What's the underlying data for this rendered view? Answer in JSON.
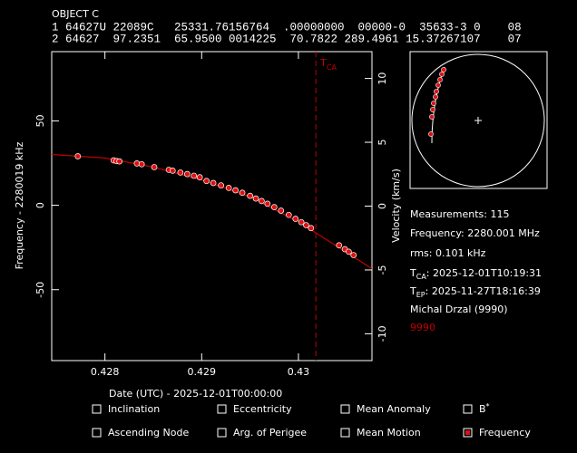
{
  "header": {
    "title": "OBJECT C",
    "tle_line1": "1 64627U 22089C   25331.76156764  .00000000  00000-0  35633-3 0    08",
    "tle_line2": "2 64627  97.2351  65.9500 0014225  70.7822 289.4961 15.37267107    07"
  },
  "chart_data": {
    "type": "line",
    "x_label": "Date (UTC) - 2025-12-01T00:00:00",
    "y_label": "Frequency - 2280019 kHz",
    "y2_label": "Velocity (km/s)",
    "xlim": [
      0.42745,
      0.43076
    ],
    "xticks": [
      0.428,
      0.429,
      0.43
    ],
    "ylim": [
      -92,
      91
    ],
    "yticks": [
      -50,
      0,
      50
    ],
    "y2lim": [
      -12.1,
      12.1
    ],
    "y2ticks": [
      -10,
      -5,
      0,
      5,
      10
    ],
    "annotation": {
      "text": "T",
      "sub": "CA",
      "x": 0.43018,
      "color": "#c00000"
    },
    "series": [
      {
        "mode": "line",
        "color": "#c00000",
        "x": [
          0.42745,
          0.428,
          0.4285,
          0.429,
          0.4295,
          0.43,
          0.4305,
          0.43076
        ],
        "values": [
          30.1,
          28,
          22.6,
          15,
          5,
          -9.8,
          -28,
          -37.6
        ]
      },
      {
        "mode": "points",
        "color": "#e01010",
        "x": [
          0.42772,
          0.42809,
          0.42812,
          0.42815,
          0.42833,
          0.42838,
          0.42851,
          0.42866,
          0.4287,
          0.42878,
          0.42885,
          0.42892,
          0.42898,
          0.42905,
          0.42912,
          0.4292,
          0.42928,
          0.42935,
          0.42942,
          0.4295,
          0.42956,
          0.42962,
          0.42968,
          0.42975,
          0.42982,
          0.4299,
          0.42997,
          0.43003,
          0.43008,
          0.43013,
          0.43042,
          0.43048,
          0.43052,
          0.43057
        ],
        "values": [
          29,
          26.6,
          26.2,
          26,
          24.8,
          24.3,
          22.6,
          21,
          20.5,
          19.4,
          18.5,
          17.5,
          16.6,
          14.4,
          13.2,
          11.8,
          10.3,
          8.9,
          7.4,
          5.6,
          4,
          2.5,
          0.9,
          -1.1,
          -3.2,
          -5.7,
          -8,
          -10,
          -11.8,
          -13.5,
          -23.7,
          -26,
          -27.5,
          -29.5
        ]
      }
    ]
  },
  "info": {
    "measurements": "Measurements: 115",
    "frequency": "Frequency: 2280.001 MHz",
    "rms": "rms: 0.101 kHz",
    "tca": {
      "prefix": "T",
      "sub": "CA",
      "text": ": 2025-12-01T10:19:31"
    },
    "tep": {
      "prefix": "T",
      "sub": "EP",
      "text": ": 2025-11-27T18:16:39"
    },
    "observer": "Michal Drzal (9990)",
    "site": "9990"
  },
  "options": [
    {
      "label": "Inclination",
      "checked": false
    },
    {
      "label": "Eccentricity",
      "checked": false
    },
    {
      "label": "Mean Anomaly",
      "checked": false
    },
    {
      "label": "B",
      "sup": "*",
      "checked": false
    },
    {
      "label": "Ascending Node",
      "checked": false
    },
    {
      "label": "Arg. of Perigee",
      "checked": false
    },
    {
      "label": "Mean Motion",
      "checked": false
    },
    {
      "label": "Frequency",
      "checked": true
    }
  ]
}
